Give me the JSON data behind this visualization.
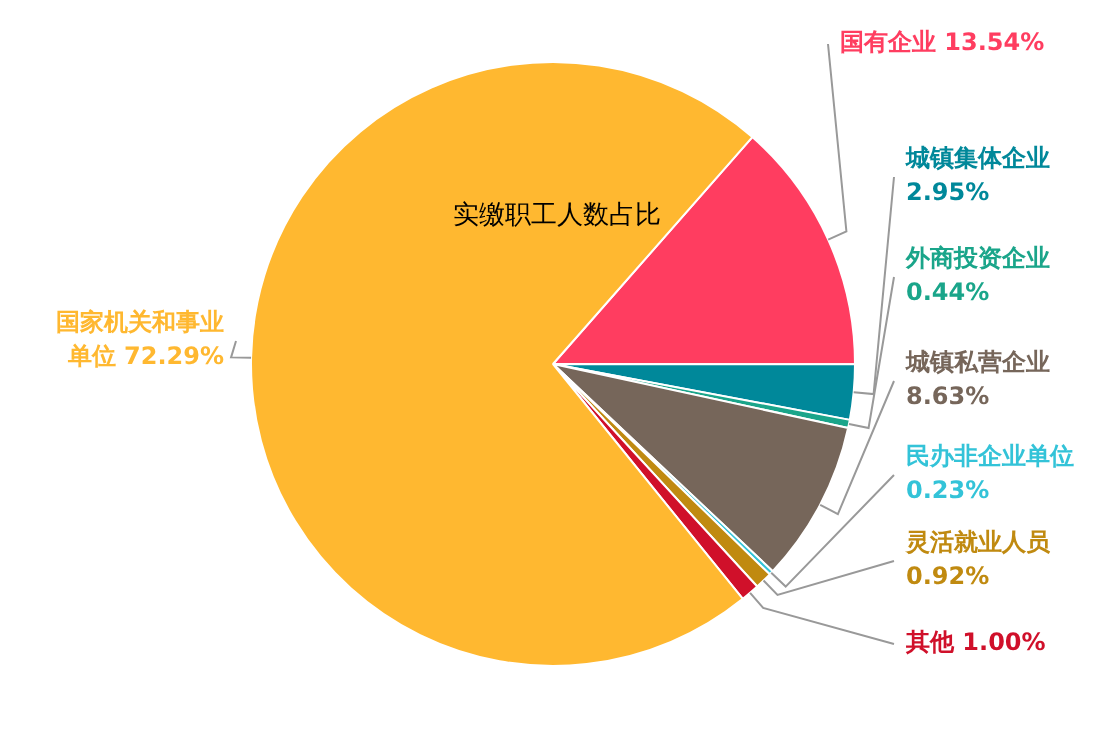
{
  "chart_data": {
    "type": "pie",
    "title": "实缴职工人数占比",
    "categories": [
      "国有企业",
      "城镇集体企业",
      "外商投资企业",
      "城镇私营企业",
      "民办非企业单位",
      "灵活就业人员",
      "其他",
      "国家机关和事业单位"
    ],
    "values": [
      13.54,
      2.95,
      0.44,
      8.63,
      0.23,
      0.92,
      1.0,
      72.29
    ],
    "value_labels": [
      "13.54%",
      "2.95%",
      "0.44%",
      "8.63%",
      "0.23%",
      "0.92%",
      "1.00%",
      "72.29%"
    ],
    "colors": [
      "#ff3d60",
      "#00889a",
      "#1aa58a",
      "#76665a",
      "#33c3d8",
      "#c08a10",
      "#d0102a",
      "#ffb830"
    ],
    "legend": false
  }
}
